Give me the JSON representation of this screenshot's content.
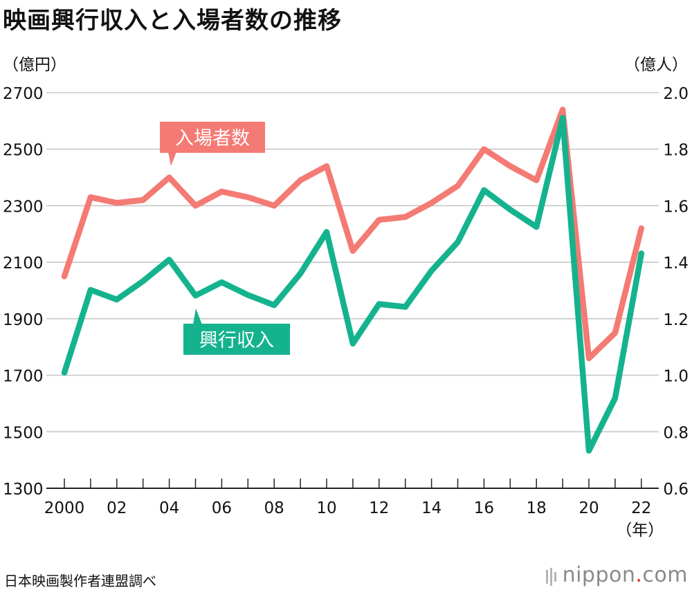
{
  "chart_data": {
    "type": "line",
    "title": "映画興行収入と入場者数の推移",
    "x": [
      2000,
      2001,
      2002,
      2003,
      2004,
      2005,
      2006,
      2007,
      2008,
      2009,
      2010,
      2011,
      2012,
      2013,
      2014,
      2015,
      2016,
      2017,
      2018,
      2019,
      2020,
      2021,
      2022
    ],
    "x_tick_labels": [
      "2000",
      "02",
      "04",
      "06",
      "08",
      "10",
      "12",
      "14",
      "16",
      "18",
      "20",
      "22"
    ],
    "x_tick_values": [
      2000,
      2002,
      2004,
      2006,
      2008,
      2010,
      2012,
      2014,
      2016,
      2018,
      2020,
      2022
    ],
    "xlabel": "（年）",
    "y_left": {
      "label": "（億円）",
      "lim": [
        1300,
        2700
      ],
      "ticks": [
        1300,
        1500,
        1700,
        1900,
        2100,
        2300,
        2500,
        2700
      ]
    },
    "y_right": {
      "label": "（億人）",
      "lim": [
        0.6,
        2.0
      ],
      "ticks": [
        "0.6",
        "0.8",
        "1.0",
        "1.2",
        "1.4",
        "1.6",
        "1.8",
        "2.0"
      ]
    },
    "series": [
      {
        "name": "興行収入",
        "axis": "left",
        "color": "#14b38e",
        "values": [
          1709,
          2002,
          1968,
          2033,
          2109,
          1982,
          2029,
          1984,
          1948,
          2060,
          2207,
          1812,
          1952,
          1942,
          2070,
          2171,
          2355,
          2286,
          2225,
          2611,
          1433,
          1619,
          2131
        ]
      },
      {
        "name": "入場者数",
        "axis": "right",
        "color": "#f47a74",
        "values": [
          1.35,
          1.63,
          1.61,
          1.62,
          1.7,
          1.6,
          1.65,
          1.63,
          1.6,
          1.69,
          1.74,
          1.44,
          1.55,
          1.56,
          1.61,
          1.67,
          1.8,
          1.74,
          1.69,
          1.94,
          1.06,
          1.15,
          1.52
        ]
      }
    ],
    "grid": true
  },
  "labels": {
    "admissions_callout": "入場者数",
    "revenue_callout": "興行収入"
  },
  "source": "日本映画製作者連盟調べ",
  "brand": {
    "name": "nippon",
    "dot": ".",
    "tld": "com"
  }
}
